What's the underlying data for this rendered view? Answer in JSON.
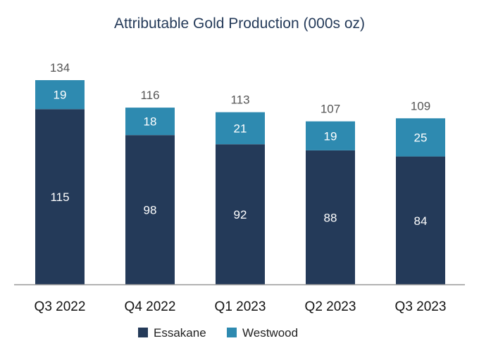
{
  "chart_data": {
    "type": "bar",
    "stacked": true,
    "title": "Attributable Gold Production (000s oz)",
    "categories": [
      "Q3 2022",
      "Q4 2022",
      "Q1 2023",
      "Q2 2023",
      "Q3 2023"
    ],
    "series": [
      {
        "name": "Essakane",
        "values": [
          115,
          98,
          92,
          88,
          84
        ],
        "color": "#243a59"
      },
      {
        "name": "Westwood",
        "values": [
          19,
          18,
          21,
          19,
          25
        ],
        "color": "#2e8ab0"
      }
    ],
    "totals": [
      134,
      116,
      113,
      107,
      109
    ],
    "ylim": [
      0,
      134
    ],
    "grid": false,
    "legend": "bottom"
  }
}
